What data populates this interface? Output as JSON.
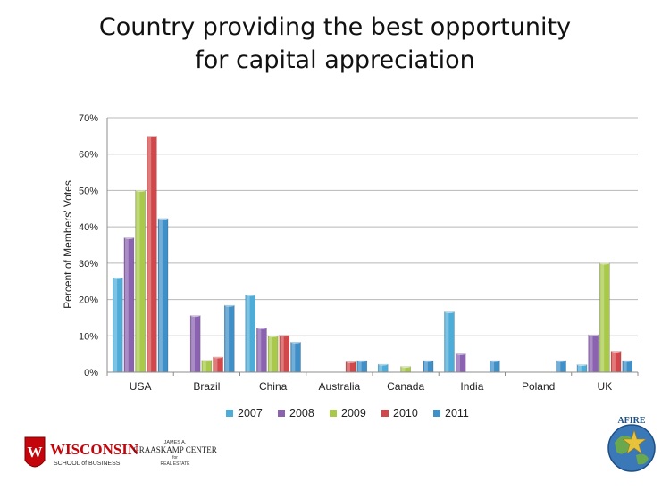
{
  "title_line1": "Country providing the best opportunity",
  "title_line2": "for capital appreciation",
  "colors": {
    "2007": "#4eacd9",
    "2008": "#8a62b0",
    "2009": "#a8c94a",
    "2010": "#d2484a",
    "2011": "#3f8fc8"
  },
  "logos": {
    "wisconsin": "WISCONSIN",
    "school": "SCHOOL of BUSINESS",
    "graaskamp_top": "JAMES A.",
    "graaskamp_mid": "GRAASKAMP CENTER",
    "graaskamp_for": "for",
    "graaskamp_bottom": "REAL ESTATE",
    "afire": "AFIRE"
  },
  "chart_data": {
    "type": "bar",
    "title": "Country providing the best opportunity for capital appreciation",
    "xlabel": "",
    "ylabel": "Percent of Members' Votes",
    "ylim": [
      0,
      70
    ],
    "yticks": [
      "0%",
      "10%",
      "20%",
      "30%",
      "40%",
      "50%",
      "60%",
      "70%"
    ],
    "grid": true,
    "legend": "bottom",
    "categories": [
      "USA",
      "Brazil",
      "China",
      "Australia",
      "Canada",
      "India",
      "Poland",
      "UK"
    ],
    "series": [
      {
        "name": "2007",
        "values": [
          26,
          0,
          21.3,
          0,
          2.2,
          16.6,
          0,
          2.1
        ]
      },
      {
        "name": "2008",
        "values": [
          37,
          15.6,
          12.2,
          0,
          0,
          5.1,
          0,
          10.3
        ]
      },
      {
        "name": "2009",
        "values": [
          50,
          3.3,
          10,
          0,
          1.6,
          0,
          0,
          30
        ]
      },
      {
        "name": "2010",
        "values": [
          65,
          4.2,
          10.2,
          2.9,
          0,
          0,
          0,
          5.8
        ]
      },
      {
        "name": "2011",
        "values": [
          42.3,
          18.4,
          8.3,
          3.2,
          3.2,
          3.2,
          3.2,
          3.2
        ]
      }
    ]
  }
}
